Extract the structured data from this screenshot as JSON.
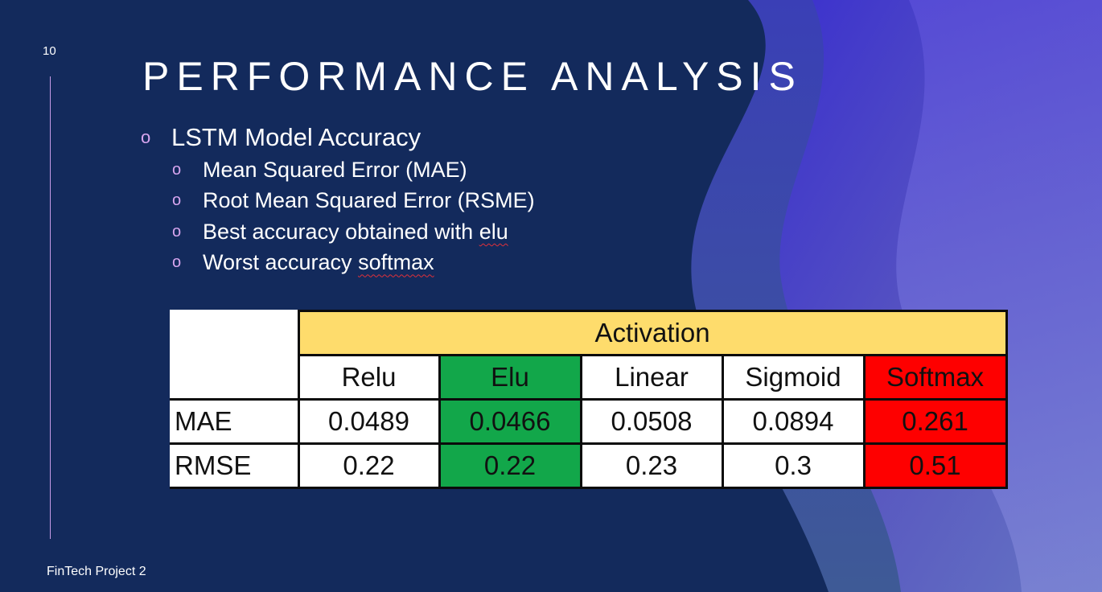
{
  "slide": {
    "number": "10",
    "title": "PERFORMANCE ANALYSIS",
    "footer": "FinTech Project 2"
  },
  "bullets": {
    "level1": "LSTM Model Accuracy",
    "items": [
      "Mean Squared Error (MAE)",
      "Root Mean Squared Error (RSME)",
      "Best accuracy obtained with ",
      "Worst accuracy "
    ],
    "best_word": "elu",
    "worst_word": "softmax"
  },
  "table": {
    "group_header": "Activation",
    "columns": [
      "Relu",
      "Elu",
      "Linear",
      "Sigmoid",
      "Softmax"
    ],
    "rows": [
      {
        "label": "MAE",
        "values": [
          "0.0489",
          "0.0466",
          "0.0508",
          "0.0894",
          "0.261"
        ]
      },
      {
        "label": "RMSE",
        "values": [
          "0.22",
          "0.22",
          "0.23",
          "0.3",
          "0.51"
        ]
      }
    ]
  },
  "colors": {
    "background": "#132a5c",
    "accent": "#c89be6",
    "activation_header": "#fedc6c",
    "best": "#12a74a",
    "worst": "#fe0000"
  }
}
